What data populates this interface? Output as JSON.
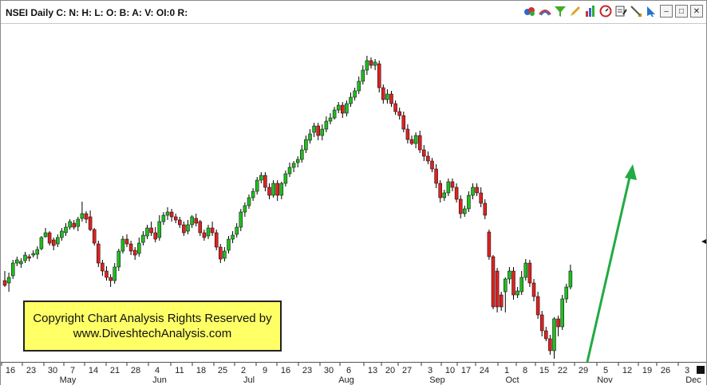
{
  "window": {
    "title": "NSEI Daily C: N: H: L: O: B: A: V: OI:0 R:",
    "toolbar_icons": [
      "indices-icon",
      "rainbow-icon",
      "filter-icon",
      "pencil-icon",
      "bars-icon",
      "gauge-icon",
      "notes-icon",
      "line-tool-icon",
      "cursor-icon"
    ],
    "window_buttons": {
      "minimize": "–",
      "maximize": "□",
      "close": "✕"
    }
  },
  "watermark": {
    "line1": "Copyright Chart Analysis Rights Reserved by",
    "line2": "www.DiveshtechAnalysis.com"
  },
  "chart_data": {
    "type": "candlestick",
    "symbol": "NSEI",
    "interval": "Daily",
    "colors": {
      "up": "#22bb22",
      "down": "#dd2222",
      "wick": "#000000",
      "arrow": "#22aa44"
    },
    "x_ticks": [
      "16",
      "23",
      "30",
      "7",
      "14",
      "21",
      "28",
      "4",
      "11",
      "18",
      "25",
      "2",
      "9",
      "16",
      "23",
      "30",
      "6",
      "13",
      "20",
      "27",
      "3",
      "10",
      "17",
      "24",
      "1",
      "8",
      "15",
      "22",
      "29",
      "5",
      "12",
      "19",
      "26",
      "3"
    ],
    "months": [
      "May",
      "Jun",
      "Jul",
      "Aug",
      "Sep",
      "Oct",
      "Nov",
      "Dec"
    ],
    "annotation": "trend arrow pointing up after October low",
    "candles": [
      [
        322,
        328,
        310,
        330
      ],
      [
        325,
        318,
        312,
        336
      ],
      [
        316,
        300,
        296,
        320
      ],
      [
        300,
        296,
        292,
        304
      ],
      [
        301,
        298,
        294,
        306
      ],
      [
        297,
        290,
        286,
        300
      ],
      [
        292,
        294,
        289,
        298
      ],
      [
        290,
        288,
        284,
        293
      ],
      [
        289,
        283,
        279,
        295
      ],
      [
        282,
        268,
        266,
        284
      ],
      [
        267,
        262,
        256,
        268
      ],
      [
        262,
        275,
        260,
        278
      ],
      [
        271,
        278,
        268,
        284
      ],
      [
        276,
        268,
        264,
        280
      ],
      [
        268,
        260,
        256,
        272
      ],
      [
        262,
        255,
        250,
        266
      ],
      [
        255,
        248,
        245,
        258
      ],
      [
        250,
        255,
        246,
        258
      ],
      [
        254,
        245,
        242,
        260
      ],
      [
        244,
        238,
        223,
        248
      ],
      [
        238,
        245,
        235,
        250
      ],
      [
        242,
        258,
        234,
        260
      ],
      [
        258,
        275,
        256,
        278
      ],
      [
        276,
        300,
        272,
        305
      ],
      [
        300,
        310,
        296,
        316
      ],
      [
        310,
        318,
        304,
        322
      ],
      [
        318,
        322,
        314,
        330
      ],
      [
        322,
        305,
        300,
        326
      ],
      [
        305,
        285,
        282,
        310
      ],
      [
        285,
        270,
        266,
        288
      ],
      [
        270,
        276,
        264,
        280
      ],
      [
        276,
        285,
        272,
        290
      ],
      [
        284,
        290,
        280,
        296
      ],
      [
        288,
        275,
        268,
        292
      ],
      [
        274,
        265,
        260,
        278
      ],
      [
        266,
        256,
        252,
        270
      ],
      [
        256,
        262,
        248,
        266
      ],
      [
        262,
        270,
        255,
        274
      ],
      [
        268,
        248,
        240,
        272
      ],
      [
        248,
        240,
        236,
        252
      ],
      [
        240,
        236,
        230,
        246
      ],
      [
        236,
        242,
        232,
        248
      ],
      [
        242,
        246,
        238,
        250
      ],
      [
        246,
        252,
        242,
        256
      ],
      [
        252,
        262,
        248,
        266
      ],
      [
        260,
        252,
        246,
        264
      ],
      [
        252,
        242,
        240,
        256
      ],
      [
        244,
        250,
        238,
        254
      ],
      [
        248,
        262,
        246,
        266
      ],
      [
        262,
        268,
        258,
        272
      ],
      [
        266,
        256,
        252,
        270
      ],
      [
        256,
        262,
        248,
        266
      ],
      [
        262,
        280,
        258,
        284
      ],
      [
        280,
        295,
        276,
        300
      ],
      [
        294,
        285,
        280,
        298
      ],
      [
        284,
        270,
        266,
        288
      ],
      [
        270,
        265,
        260,
        275
      ],
      [
        264,
        255,
        250,
        268
      ],
      [
        255,
        236,
        232,
        260
      ],
      [
        236,
        228,
        224,
        242
      ],
      [
        228,
        218,
        214,
        232
      ],
      [
        218,
        210,
        206,
        222
      ],
      [
        210,
        196,
        192,
        214
      ],
      [
        196,
        190,
        186,
        200
      ],
      [
        190,
        205,
        186,
        210
      ],
      [
        205,
        215,
        200,
        220
      ],
      [
        215,
        200,
        196,
        218
      ],
      [
        200,
        215,
        196,
        222
      ],
      [
        215,
        200,
        198,
        220
      ],
      [
        200,
        188,
        184,
        204
      ],
      [
        188,
        180,
        174,
        192
      ],
      [
        180,
        175,
        172,
        186
      ],
      [
        174,
        170,
        166,
        180
      ],
      [
        170,
        158,
        152,
        174
      ],
      [
        158,
        145,
        140,
        162
      ],
      [
        146,
        138,
        132,
        150
      ],
      [
        136,
        128,
        124,
        142
      ],
      [
        128,
        140,
        124,
        146
      ],
      [
        140,
        132,
        126,
        146
      ],
      [
        132,
        122,
        116,
        136
      ],
      [
        122,
        118,
        112,
        126
      ],
      [
        118,
        108,
        104,
        120
      ],
      [
        108,
        102,
        98,
        112
      ],
      [
        102,
        112,
        98,
        118
      ],
      [
        112,
        100,
        96,
        116
      ],
      [
        100,
        92,
        86,
        104
      ],
      [
        92,
        84,
        80,
        96
      ],
      [
        84,
        72,
        66,
        88
      ],
      [
        72,
        58,
        52,
        76
      ],
      [
        58,
        46,
        40,
        64
      ],
      [
        46,
        52,
        42,
        56
      ],
      [
        52,
        48,
        44,
        58
      ],
      [
        50,
        80,
        46,
        86
      ],
      [
        80,
        95,
        76,
        100
      ],
      [
        95,
        88,
        82,
        100
      ],
      [
        88,
        100,
        84,
        104
      ],
      [
        100,
        110,
        96,
        114
      ],
      [
        110,
        115,
        105,
        120
      ],
      [
        115,
        132,
        110,
        136
      ],
      [
        132,
        145,
        126,
        150
      ],
      [
        145,
        150,
        140,
        152
      ],
      [
        150,
        140,
        136,
        156
      ],
      [
        140,
        158,
        134,
        162
      ],
      [
        158,
        166,
        152,
        172
      ],
      [
        166,
        172,
        160,
        176
      ],
      [
        172,
        182,
        168,
        186
      ],
      [
        182,
        200,
        176,
        206
      ],
      [
        200,
        218,
        196,
        224
      ],
      [
        218,
        212,
        208,
        222
      ],
      [
        212,
        198,
        194,
        216
      ],
      [
        198,
        205,
        194,
        210
      ],
      [
        205,
        220,
        200,
        224
      ],
      [
        220,
        238,
        215,
        244
      ],
      [
        238,
        232,
        228,
        242
      ],
      [
        232,
        215,
        210,
        236
      ],
      [
        215,
        205,
        200,
        220
      ],
      [
        205,
        212,
        200,
        216
      ],
      [
        212,
        225,
        205,
        230
      ],
      [
        225,
        240,
        220,
        245
      ],
      [
        261,
        292,
        258,
        296
      ],
      [
        292,
        355,
        290,
        358
      ],
      [
        310,
        355,
        306,
        362
      ],
      [
        340,
        355,
        336,
        360
      ],
      [
        336,
        320,
        318,
        362
      ],
      [
        320,
        310,
        305,
        326
      ],
      [
        310,
        340,
        305,
        346
      ],
      [
        340,
        335,
        330,
        344
      ],
      [
        336,
        318,
        310,
        340
      ],
      [
        318,
        300,
        295,
        322
      ],
      [
        300,
        325,
        296,
        330
      ],
      [
        325,
        342,
        320,
        348
      ],
      [
        342,
        365,
        336,
        370
      ],
      [
        365,
        385,
        360,
        392
      ],
      [
        385,
        395,
        380,
        398
      ],
      [
        395,
        410,
        390,
        415
      ],
      [
        410,
        370,
        368,
        420
      ],
      [
        370,
        380,
        366,
        392
      ],
      [
        380,
        345,
        340,
        384
      ],
      [
        345,
        330,
        326,
        350
      ],
      [
        330,
        310,
        302,
        333
      ]
    ]
  }
}
